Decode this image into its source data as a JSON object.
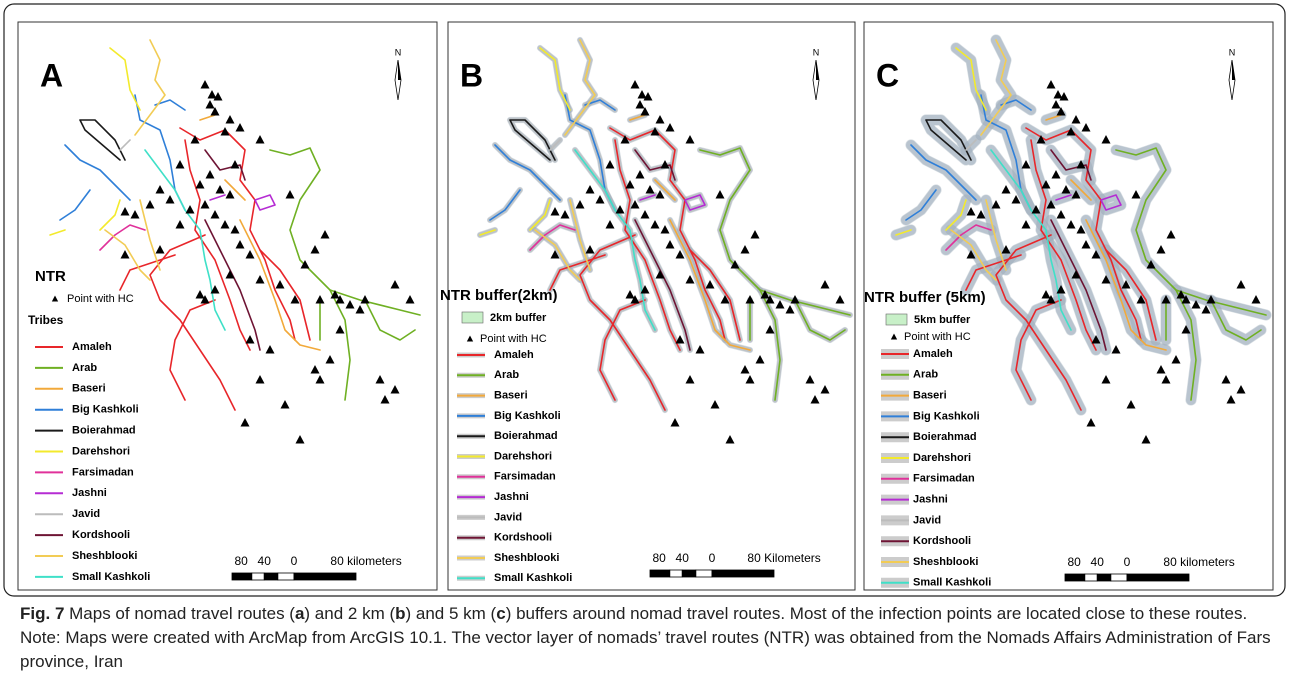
{
  "tribes": [
    {
      "name": "Amaleh",
      "color": "#e8262a"
    },
    {
      "name": "Arab",
      "color": "#6fb023"
    },
    {
      "name": "Baseri",
      "color": "#f2a93a"
    },
    {
      "name": "Big Kashkoli",
      "color": "#2f7fd8"
    },
    {
      "name": "Boierahmad",
      "color": "#1a1a1a"
    },
    {
      "name": "Darehshori",
      "color": "#f3ea2c"
    },
    {
      "name": "Farsimadan",
      "color": "#e0319a"
    },
    {
      "name": "Jashni",
      "color": "#b52cd3"
    },
    {
      "name": "Javid",
      "color": "#bcbcbc"
    },
    {
      "name": "Kordshooli",
      "color": "#6e1434"
    },
    {
      "name": "Sheshblooki",
      "color": "#f2cc55"
    },
    {
      "name": "Small Kashkoli",
      "color": "#3fe0c8"
    }
  ],
  "panels": [
    {
      "letter": "A",
      "north": "N",
      "legend_title": "NTR",
      "point_label": "Point with HC",
      "tribes_title": "Tribes",
      "scale": [
        "80",
        "40",
        "0",
        "80 kilometers"
      ]
    },
    {
      "letter": "B",
      "north": "N",
      "legend_title": "NTR buffer(2km)",
      "buffer_label": "2km buffer",
      "point_label": "Point with HC",
      "scale": [
        "80",
        "40",
        "0",
        "80 Kilometers"
      ]
    },
    {
      "letter": "C",
      "north": "N",
      "legend_title": "NTR buffer (5km)",
      "buffer_label": "5km buffer",
      "point_label": "Point with HC",
      "scale": [
        "80",
        "40",
        "0",
        "80 kilometers"
      ]
    }
  ],
  "caption": {
    "label": "Fig. 7",
    "parts": [
      " Maps of nomad travel routes (",
      "a",
      ") and 2 km (",
      "b",
      ") and 5 km (",
      "c",
      ") buffers around nomad travel routes. Most of the infection points are located close to these routes. Note: Maps were created with ArcMap from ArcGIS 10.1. The vector layer of nomads’ travel routes (NTR) was obtained from the Nomads Affairs Administration of Fars province, Iran"
    ]
  }
}
